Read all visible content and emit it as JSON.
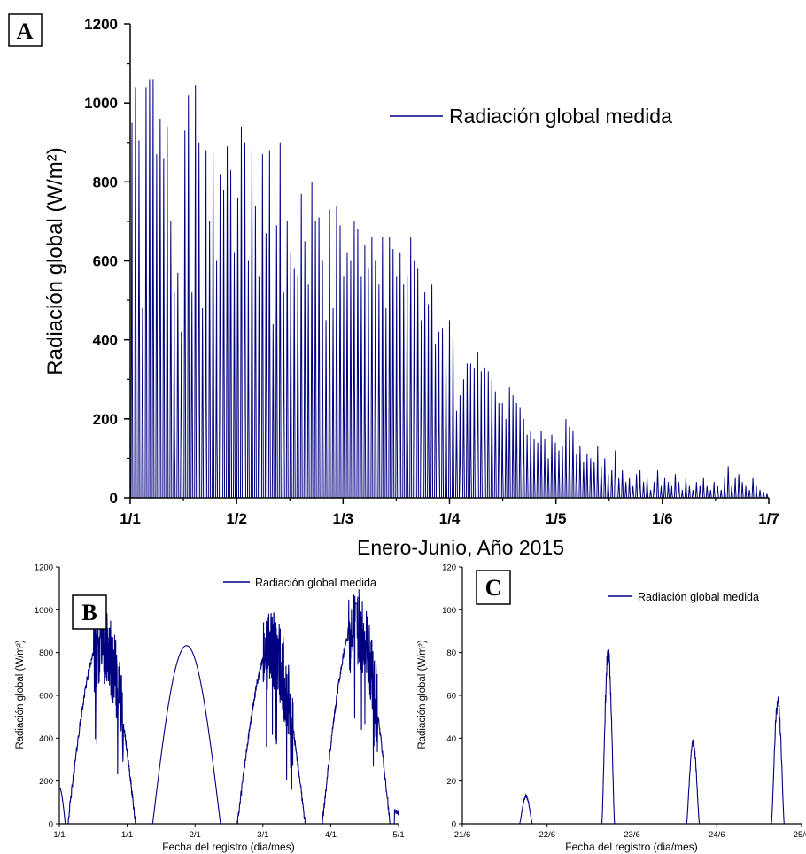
{
  "figure": {
    "line_color": "#000080",
    "axis_color": "#000000"
  },
  "chart_data": [
    {
      "id": "A",
      "type": "line",
      "panel_label": "A",
      "xlabel": "Enero-Junio, Año 2015",
      "ylabel": "Radiación global (W/m²)",
      "ylim": [
        0,
        1200
      ],
      "yticks": [
        0,
        200,
        400,
        600,
        800,
        1000,
        1200
      ],
      "ytick_labels": [
        "0",
        "200",
        "400",
        "600",
        "800",
        "1000",
        "1200"
      ],
      "xlim_days": [
        0,
        181
      ],
      "xtick_labels": [
        "1/1",
        "1/2",
        "1/3",
        "1/4",
        "1/5",
        "1/6",
        "1/7"
      ],
      "legend": "Radiación global medida",
      "legend_position": "top-right",
      "series": [
        {
          "name": "Radiación global medida",
          "daily_peak": [
            950,
            1040,
            905,
            480,
            1040,
            1060,
            1060,
            870,
            960,
            860,
            940,
            700,
            520,
            570,
            420,
            930,
            1020,
            520,
            1045,
            900,
            480,
            880,
            700,
            870,
            600,
            820,
            780,
            890,
            830,
            620,
            760,
            940,
            900,
            600,
            880,
            740,
            560,
            870,
            670,
            880,
            440,
            690,
            900,
            520,
            700,
            620,
            580,
            560,
            770,
            650,
            540,
            800,
            700,
            710,
            600,
            450,
            730,
            480,
            740,
            690,
            560,
            620,
            600,
            700,
            680,
            560,
            640,
            580,
            660,
            600,
            540,
            660,
            480,
            660,
            630,
            560,
            620,
            540,
            560,
            660,
            600,
            580,
            450,
            520,
            490,
            540,
            390,
            420,
            430,
            350,
            450,
            420,
            220,
            260,
            300,
            340,
            340,
            330,
            370,
            320,
            330,
            320,
            300,
            270,
            240,
            240,
            200,
            280,
            260,
            240,
            230,
            200,
            160,
            170,
            150,
            140,
            170,
            150,
            100,
            160,
            140,
            120,
            130,
            200,
            180,
            170,
            110,
            130,
            90,
            110,
            100,
            90,
            130,
            80,
            100,
            60,
            70,
            120,
            50,
            70,
            40,
            50,
            30,
            60,
            70,
            40,
            50,
            20,
            40,
            70,
            30,
            50,
            40,
            30,
            60,
            40,
            20,
            50,
            30,
            20,
            40,
            30,
            50,
            30,
            20,
            40,
            30,
            20,
            50,
            80,
            30,
            50,
            60,
            40,
            30,
            20,
            50,
            30,
            20,
            15,
            10
          ]
        }
      ]
    },
    {
      "id": "B",
      "type": "line",
      "panel_label": "B",
      "xlabel": "Fecha del registro (dia/mes)",
      "ylabel": "Radiación global (W/m²)",
      "ylim": [
        0,
        1200
      ],
      "yticks": [
        0,
        200,
        400,
        600,
        800,
        1000,
        1200
      ],
      "ytick_labels": [
        "0",
        "200",
        "400",
        "600",
        "800",
        "1000",
        "1200"
      ],
      "xtick_labels": [
        "1/1",
        "1/1",
        "2/1",
        "3/1",
        "4/1",
        "5/1"
      ],
      "legend": "Radiación global medida",
      "legend_position": "top-right",
      "series": [
        {
          "name": "Radiación global medida",
          "days": [
            {
              "day": 0,
              "peak": 940,
              "noisy": true
            },
            {
              "day": 1,
              "peak": 905,
              "noisy": false
            },
            {
              "day": 2,
              "peak": 900,
              "noisy": true
            },
            {
              "day": 3,
              "peak": 1030,
              "noisy": true
            }
          ]
        }
      ]
    },
    {
      "id": "C",
      "type": "line",
      "panel_label": "C",
      "xlabel": "Fecha del registro (dia/mes)",
      "ylabel": "Radiación global (W/m²)",
      "ylim": [
        0,
        120
      ],
      "yticks": [
        0,
        20,
        40,
        60,
        80,
        100,
        120
      ],
      "ytick_labels": [
        "0",
        "20",
        "40",
        "60",
        "80",
        "100",
        "120"
      ],
      "xtick_labels": [
        "21/6",
        "22/6",
        "23/6",
        "24/6",
        "25/6"
      ],
      "legend": "Radiación global medida",
      "legend_position": "top-right",
      "series": [
        {
          "name": "Radiación global medida",
          "pulses": [
            {
              "day": 21.75,
              "peak": 13
            },
            {
              "day": 22.72,
              "peak": 79
            },
            {
              "day": 23.72,
              "peak": 38
            },
            {
              "day": 24.72,
              "peak": 57
            }
          ]
        }
      ]
    }
  ]
}
